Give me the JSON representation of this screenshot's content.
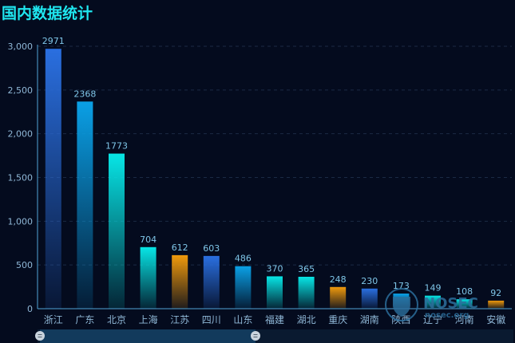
{
  "title": "国内数据统计",
  "watermark": {
    "name": "NOSEC",
    "site": "nosec.org"
  },
  "colors": {
    "background": "#040b1e",
    "title": "#1fe7f0",
    "axis": "#4fa3d6",
    "grid": "#1b2a44",
    "blue": "#2a6fe0",
    "lightblue": "#0aa0e6",
    "cyan": "#07e6e6",
    "orange": "#f09a0c"
  },
  "chart_data": {
    "type": "bar",
    "categories": [
      "浙江",
      "广东",
      "北京",
      "上海",
      "江苏",
      "四川",
      "山东",
      "福建",
      "湖北",
      "重庆",
      "湖南",
      "陕西",
      "辽宁",
      "河南",
      "安徽"
    ],
    "values": [
      2971,
      2368,
      1773,
      704,
      612,
      603,
      486,
      370,
      365,
      248,
      230,
      173,
      149,
      108,
      92
    ],
    "bar_colors": [
      "blue",
      "lightblue",
      "cyan",
      "cyan",
      "orange",
      "blue",
      "lightblue",
      "cyan",
      "cyan",
      "orange",
      "blue",
      "lightblue",
      "cyan",
      "cyan",
      "orange"
    ],
    "ylim": [
      0,
      3000
    ],
    "yticks": [
      0,
      500,
      1000,
      1500,
      2000,
      2500,
      3000
    ],
    "ytick_labels": [
      "0",
      "500",
      "1,000",
      "1,500",
      "2,000",
      "2,500",
      "3,000"
    ],
    "grid": true,
    "data_labels": true
  }
}
